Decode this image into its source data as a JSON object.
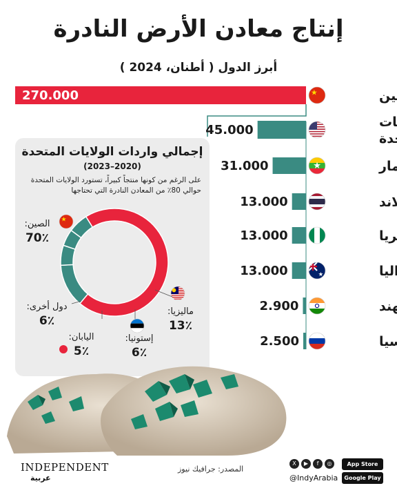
{
  "title": "إنتاج معادن الأرض النادرة",
  "subtitle": "أبرز الدول ( أطنان، 2024 )",
  "chart_data": [
    {
      "type": "bar",
      "orientation": "horizontal",
      "categories": [
        "الصين",
        "الولايات المتحدة",
        "ميانمار",
        "تايلاند",
        "نيجيريا",
        "أستراليا",
        "الهند",
        "روسيا"
      ],
      "values": [
        270000,
        45000,
        31000,
        13000,
        13000,
        13000,
        2900,
        2500
      ],
      "value_labels": [
        "270.000",
        "45.000",
        "31.000",
        "13.000",
        "13.000",
        "13.000",
        "2.900",
        "2.500"
      ],
      "title": "إنتاج معادن الأرض النادرة",
      "subtitle": "أبرز الدول ( أطنان، 2024 )",
      "colors": {
        "first": "#e8243c",
        "rest": "#3a8b82"
      }
    },
    {
      "type": "pie",
      "title": "إجمالي واردات الولايات المتحدة",
      "period": "(2020–2023)",
      "note": "على الرغم من كونها منتجاً كبيراً، تستورد الولايات المتحدة حوالي 80٪ من المعادن النادرة التي تحتاجها",
      "slices": [
        {
          "label": "الصين:",
          "value": 70,
          "display": "70٪",
          "color": "#e8243c"
        },
        {
          "label": "ماليزيا:",
          "value": 13,
          "display": "13٪",
          "color": "#3a8b82"
        },
        {
          "label": "إستونيا:",
          "value": 6,
          "display": "6٪",
          "color": "#3a8b82"
        },
        {
          "label": "اليابان:",
          "value": 5,
          "display": "5٪",
          "color": "#3a8b82"
        },
        {
          "label": "دول أخرى:",
          "value": 6,
          "display": "6٪",
          "color": "#3a8b82"
        }
      ]
    }
  ],
  "footer": {
    "source": "المصدر: جرافيك نيوز",
    "brand": "INDEPENDENT",
    "brand_arabic": "عربية",
    "handle": "@IndyArabia",
    "app_store": "App Store",
    "google_play": "Google Play"
  },
  "icons": [
    "flag-china-icon",
    "flag-usa-icon",
    "flag-myanmar-icon",
    "flag-thailand-icon",
    "flag-nigeria-icon",
    "flag-australia-icon",
    "flag-india-icon",
    "flag-russia-icon",
    "flag-malaysia-icon",
    "flag-estonia-icon",
    "flag-japan-icon"
  ]
}
